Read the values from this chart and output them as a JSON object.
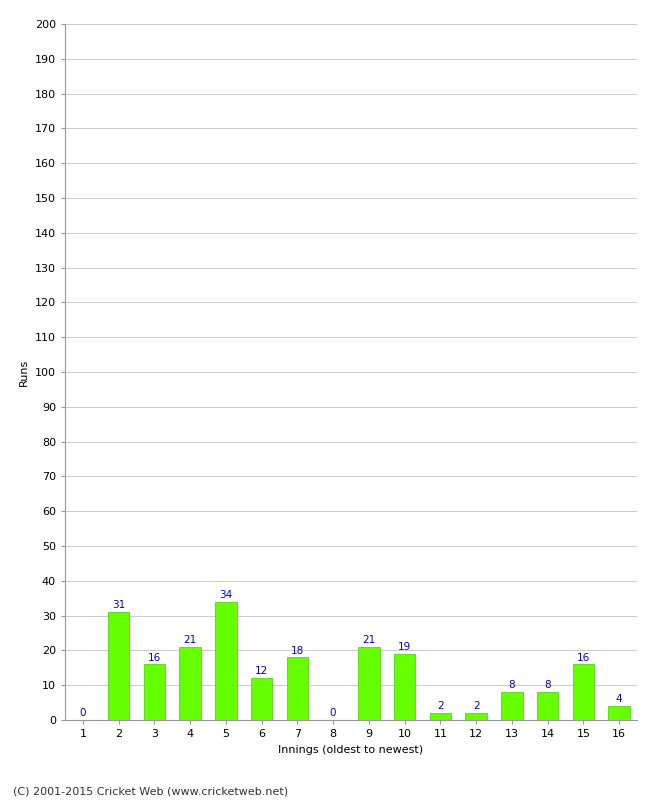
{
  "title": "",
  "xlabel": "Innings (oldest to newest)",
  "ylabel": "Runs",
  "categories": [
    "1",
    "2",
    "3",
    "4",
    "5",
    "6",
    "7",
    "8",
    "9",
    "10",
    "11",
    "12",
    "13",
    "14",
    "15",
    "16"
  ],
  "values": [
    0,
    31,
    16,
    21,
    34,
    12,
    18,
    0,
    21,
    19,
    2,
    2,
    8,
    8,
    16,
    4
  ],
  "bar_color": "#66ff00",
  "bar_edge_color": "#44cc00",
  "label_color": "#0000cc",
  "ylim": [
    0,
    200
  ],
  "yticks": [
    0,
    10,
    20,
    30,
    40,
    50,
    60,
    70,
    80,
    90,
    100,
    110,
    120,
    130,
    140,
    150,
    160,
    170,
    180,
    190,
    200
  ],
  "background_color": "#ffffff",
  "grid_color": "#cccccc",
  "footer_text": "(C) 2001-2015 Cricket Web (www.cricketweb.net)",
  "ylabel_fontsize": 8,
  "xlabel_fontsize": 8,
  "tick_fontsize": 8,
  "footer_fontsize": 8,
  "bar_label_fontsize": 7.5
}
